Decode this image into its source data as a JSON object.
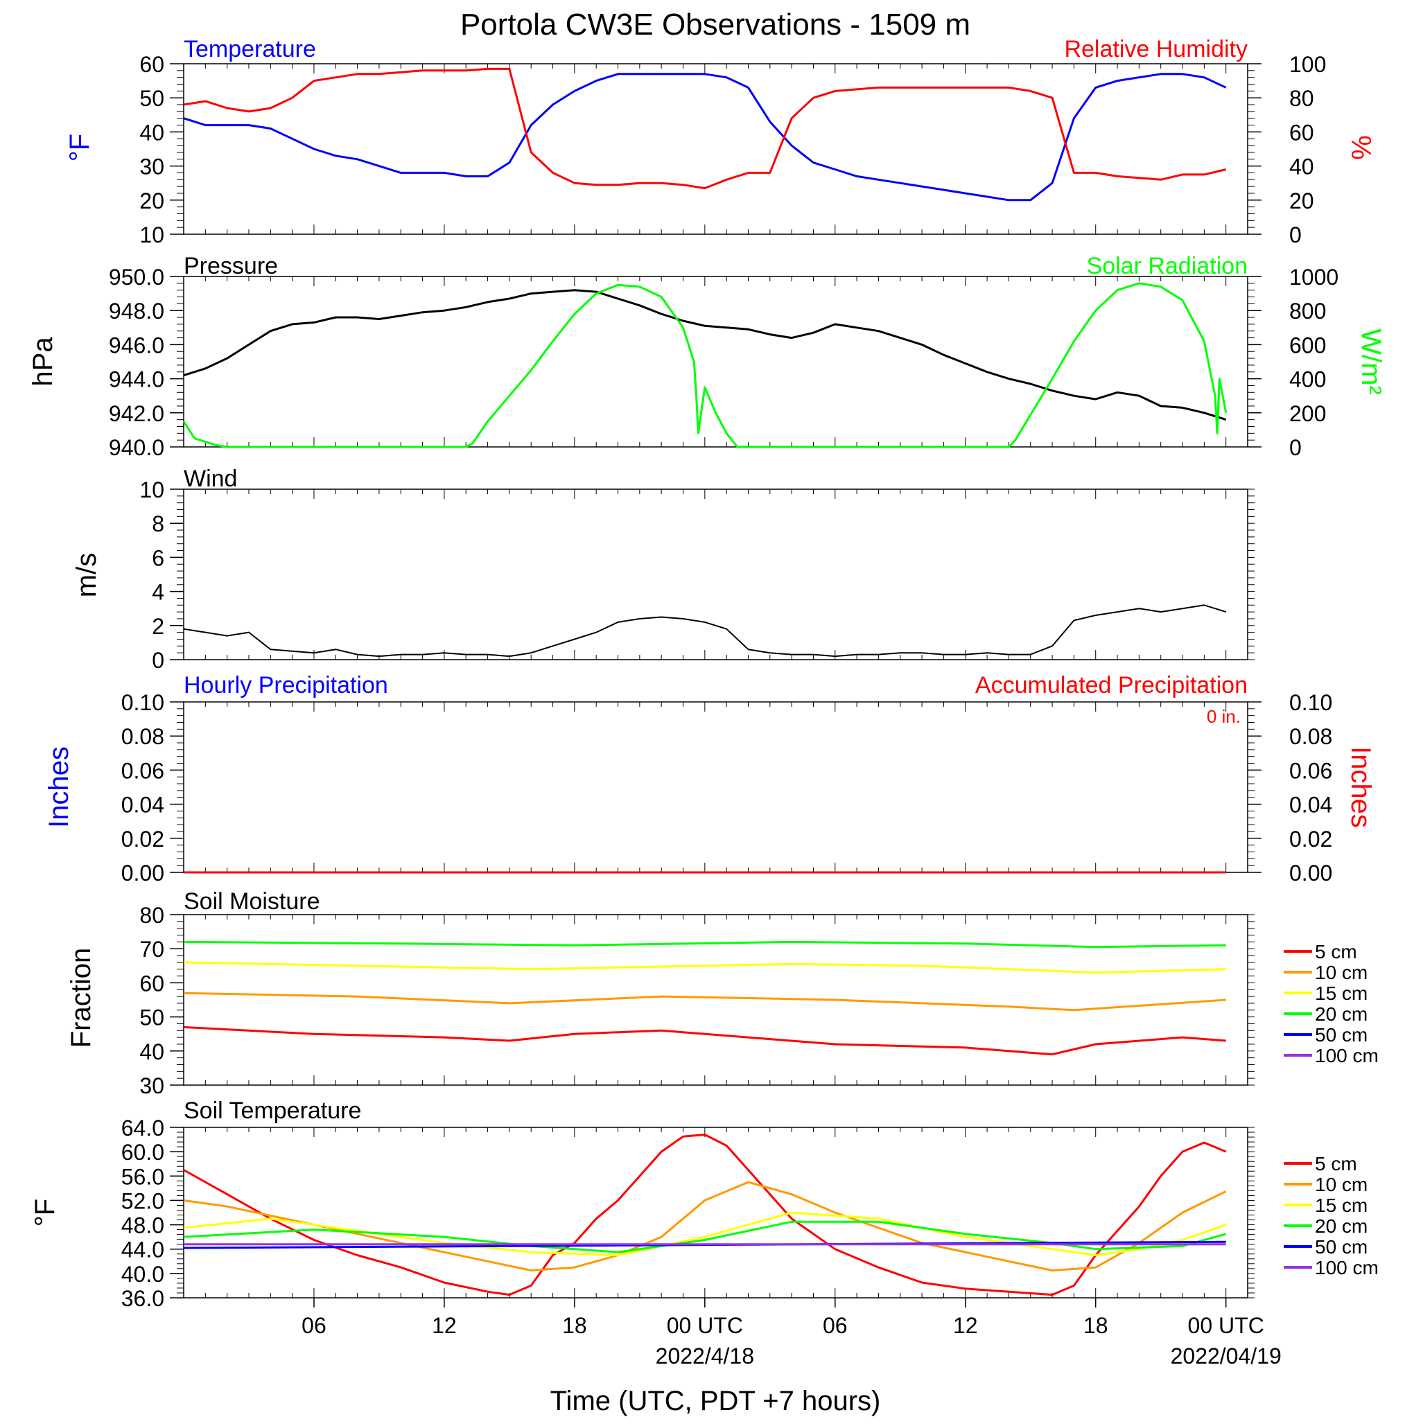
{
  "title": "Portola CW3E Observations - 1509 m",
  "xlabel": "Time (UTC, PDT +7 hours)",
  "x_ticks": [
    {
      "h": 6,
      "label": "06",
      "date": ""
    },
    {
      "h": 12,
      "label": "12",
      "date": ""
    },
    {
      "h": 18,
      "label": "18",
      "date": ""
    },
    {
      "h": 24,
      "label": "00 UTC",
      "date": "2022/4/18"
    },
    {
      "h": 30,
      "label": "06",
      "date": ""
    },
    {
      "h": 36,
      "label": "12",
      "date": ""
    },
    {
      "h": 42,
      "label": "18",
      "date": ""
    },
    {
      "h": 48,
      "label": "00 UTC",
      "date": "2022/04/19"
    }
  ],
  "legend_soil": [
    "5 cm",
    "10 cm",
    "15 cm",
    "20 cm",
    "50 cm",
    "100 cm"
  ],
  "colors": {
    "red": "#ff0000",
    "orange": "#ff9900",
    "yellow": "#ffff00",
    "green": "#00ff00",
    "blue": "#0000ff",
    "purple": "#9933dd",
    "black": "#000000"
  },
  "panels": {
    "temp": {
      "left_title": "Temperature",
      "right_title": "Relative Humidity",
      "left_unit": "°F",
      "right_unit": "%",
      "left_ticks": [
        "60",
        "50",
        "40",
        "30",
        "20",
        "10"
      ],
      "right_ticks": [
        "100",
        "80",
        "60",
        "40",
        "20",
        "0"
      ]
    },
    "press": {
      "left_title": "Pressure",
      "right_title": "Solar Radiation",
      "left_unit": "hPa",
      "right_unit": "W/m²",
      "left_ticks": [
        "950.0",
        "948.0",
        "946.0",
        "944.0",
        "942.0",
        "940.0"
      ],
      "right_ticks": [
        "1000",
        "800",
        "600",
        "400",
        "200",
        "0"
      ]
    },
    "wind": {
      "left_title": "Wind",
      "left_unit": "m/s",
      "left_ticks": [
        "10",
        "8",
        "6",
        "4",
        "2",
        "0"
      ]
    },
    "precip": {
      "left_title": "Hourly Precipitation",
      "right_title": "Accumulated Precipitation",
      "accum_value": "0 in.",
      "left_unit": "Inches",
      "right_unit": "Inches",
      "left_ticks": [
        "0.10",
        "0.08",
        "0.06",
        "0.04",
        "0.02",
        "0.00"
      ],
      "right_ticks": [
        "0.10",
        "0.08",
        "0.06",
        "0.04",
        "0.02",
        "0.00"
      ]
    },
    "smoist": {
      "left_title": "Soil Moisture",
      "left_unit": "Fraction",
      "left_ticks": [
        "80",
        "70",
        "60",
        "50",
        "40",
        "30"
      ]
    },
    "stemp": {
      "left_title": "Soil Temperature",
      "left_unit": "°F",
      "left_ticks": [
        "64.0",
        "60.0",
        "56.0",
        "52.0",
        "48.0",
        "44.0",
        "40.0",
        "36.0"
      ]
    }
  },
  "chart_data": [
    {
      "type": "line",
      "title": "Temperature / Relative Humidity",
      "x_units": "hours since 2022-04-17 00 UTC",
      "xlim": [
        0,
        49
      ],
      "ylabel": "°F",
      "ylim": [
        10,
        60
      ],
      "y2label": "%",
      "y2lim": [
        0,
        100
      ],
      "series": [
        {
          "name": "Temperature",
          "axis": "left",
          "color": "#0000ff",
          "x": [
            0,
            1,
            3,
            4,
            5,
            6,
            7,
            8,
            9,
            10,
            11,
            12,
            13,
            14,
            15,
            16,
            17,
            18,
            19,
            20,
            21,
            22,
            23,
            24,
            25,
            26,
            27,
            28,
            29,
            30,
            31,
            32,
            33,
            34,
            35,
            36,
            37,
            38,
            39,
            40,
            41,
            42,
            43,
            44,
            45,
            46,
            47,
            48
          ],
          "y": [
            44,
            42,
            42,
            41,
            38,
            35,
            33,
            32,
            30,
            28,
            28,
            28,
            27,
            27,
            31,
            42,
            48,
            52,
            55,
            57,
            57,
            57,
            57,
            57,
            56,
            53,
            43,
            36,
            31,
            29,
            27,
            26,
            25,
            24,
            23,
            22,
            21,
            20,
            20,
            25,
            44,
            53,
            55,
            56,
            57,
            57,
            56,
            53
          ]
        },
        {
          "name": "Relative Humidity",
          "axis": "right",
          "color": "#ff0000",
          "x": [
            0,
            1,
            2,
            3,
            4,
            5,
            6,
            7,
            8,
            9,
            10,
            11,
            12,
            13,
            14,
            15,
            16,
            17,
            18,
            19,
            20,
            21,
            22,
            23,
            24,
            25,
            26,
            27,
            28,
            29,
            30,
            31,
            32,
            33,
            34,
            35,
            36,
            37,
            38,
            39,
            40,
            41,
            42,
            43,
            44,
            45,
            46,
            47,
            48
          ],
          "y": [
            76,
            78,
            74,
            72,
            74,
            80,
            90,
            92,
            94,
            94,
            95,
            96,
            96,
            96,
            97,
            97,
            48,
            36,
            30,
            29,
            29,
            30,
            30,
            29,
            27,
            32,
            36,
            36,
            68,
            80,
            84,
            85,
            86,
            86,
            86,
            86,
            86,
            86,
            86,
            84,
            80,
            36,
            36,
            34,
            33,
            32,
            35,
            35,
            38
          ]
        }
      ]
    },
    {
      "type": "line",
      "title": "Pressure / Solar Radiation",
      "ylabel": "hPa",
      "ylim": [
        940,
        950
      ],
      "y2label": "W/m²",
      "y2lim": [
        0,
        1000
      ],
      "series": [
        {
          "name": "Pressure",
          "axis": "left",
          "color": "#000000",
          "x": [
            0,
            1,
            2,
            3,
            4,
            5,
            6,
            7,
            8,
            9,
            10,
            11,
            12,
            13,
            14,
            15,
            16,
            17,
            18,
            19,
            20,
            21,
            22,
            23,
            24,
            25,
            26,
            27,
            28,
            29,
            30,
            31,
            32,
            33,
            34,
            35,
            36,
            37,
            38,
            39,
            40,
            41,
            42,
            43,
            44,
            45,
            46,
            47,
            48
          ],
          "y": [
            944.2,
            944.6,
            945.2,
            946,
            946.8,
            947.2,
            947.3,
            947.6,
            947.6,
            947.5,
            947.7,
            947.9,
            948,
            948.2,
            948.5,
            948.7,
            949,
            949.1,
            949.2,
            949.1,
            948.7,
            948.3,
            947.8,
            947.4,
            947.1,
            947,
            946.9,
            946.6,
            946.4,
            946.7,
            947.2,
            947,
            946.8,
            946.4,
            946,
            945.4,
            944.9,
            944.4,
            944,
            943.7,
            943.3,
            943,
            942.8,
            943.2,
            943,
            942.4,
            942.3,
            942,
            941.6
          ]
        },
        {
          "name": "Solar Radiation",
          "axis": "right",
          "color": "#00ff00",
          "x": [
            0,
            0.5,
            1.5,
            2,
            13,
            13.3,
            14,
            15,
            16,
            17,
            18,
            19,
            20,
            21,
            22,
            23,
            23.5,
            23.6,
            23.7,
            24,
            24.5,
            25,
            25.5,
            26.5,
            27,
            38,
            38.3,
            40,
            41,
            42,
            43,
            44,
            45,
            46,
            47,
            47.5,
            47.6,
            47.7,
            48
          ],
          "y": [
            150,
            50,
            10,
            0,
            0,
            20,
            150,
            300,
            450,
            620,
            780,
            900,
            950,
            940,
            880,
            700,
            500,
            320,
            80,
            350,
            200,
            80,
            0,
            0,
            0,
            0,
            40,
            400,
            620,
            800,
            920,
            960,
            940,
            860,
            620,
            300,
            80,
            400,
            200
          ]
        }
      ]
    },
    {
      "type": "line",
      "title": "Wind",
      "ylabel": "m/s",
      "ylim": [
        0,
        10
      ],
      "series": [
        {
          "name": "Wind speed",
          "axis": "left",
          "color": "#000000",
          "x": [
            0,
            1,
            2,
            3,
            4,
            5,
            6,
            7,
            8,
            9,
            10,
            11,
            12,
            13,
            14,
            15,
            16,
            17,
            18,
            19,
            20,
            21,
            22,
            23,
            24,
            25,
            26,
            27,
            28,
            29,
            30,
            31,
            32,
            33,
            34,
            35,
            36,
            37,
            38,
            39,
            40,
            41,
            42,
            43,
            44,
            45,
            46,
            47,
            48
          ],
          "y": [
            1.8,
            1.6,
            1.4,
            1.6,
            0.6,
            0.5,
            0.4,
            0.6,
            0.3,
            0.2,
            0.3,
            0.3,
            0.4,
            0.3,
            0.3,
            0.2,
            0.4,
            0.8,
            1.2,
            1.6,
            2.2,
            2.4,
            2.5,
            2.4,
            2.2,
            1.8,
            0.6,
            0.4,
            0.3,
            0.3,
            0.2,
            0.3,
            0.3,
            0.4,
            0.4,
            0.3,
            0.3,
            0.4,
            0.3,
            0.3,
            0.8,
            2.3,
            2.6,
            2.8,
            3.0,
            2.8,
            3.0,
            3.2,
            2.8
          ]
        }
      ]
    },
    {
      "type": "line",
      "title": "Precipitation",
      "ylabel": "Inches",
      "ylim": [
        0,
        0.1
      ],
      "y2label": "Inches",
      "y2lim": [
        0,
        0.1
      ],
      "series": [
        {
          "name": "Hourly Precipitation",
          "axis": "left",
          "color": "#0000ff",
          "x": [
            0,
            48
          ],
          "y": [
            0,
            0
          ]
        },
        {
          "name": "Accumulated Precipitation",
          "axis": "right",
          "color": "#ff0000",
          "x": [
            0,
            48
          ],
          "y": [
            0,
            0
          ]
        }
      ]
    },
    {
      "type": "line",
      "title": "Soil Moisture",
      "ylabel": "Fraction",
      "ylim": [
        30,
        80
      ],
      "series": [
        {
          "name": "5 cm",
          "color": "#ff0000",
          "x": [
            0,
            6,
            12,
            15,
            18,
            22,
            30,
            36,
            40,
            42,
            46,
            48
          ],
          "y": [
            47,
            45,
            44,
            43,
            45,
            46,
            42,
            41,
            39,
            42,
            44,
            43
          ]
        },
        {
          "name": "10 cm",
          "color": "#ff9900",
          "x": [
            0,
            8,
            15,
            22,
            30,
            38,
            41,
            48
          ],
          "y": [
            57,
            56,
            54,
            56,
            55,
            53,
            52,
            55
          ]
        },
        {
          "name": "15 cm",
          "color": "#ffff00",
          "x": [
            0,
            8,
            16,
            28,
            34,
            42,
            48
          ],
          "y": [
            66,
            65,
            64,
            65.5,
            65,
            63,
            64
          ]
        },
        {
          "name": "20 cm",
          "color": "#00ff00",
          "x": [
            0,
            10,
            18,
            28,
            36,
            42,
            48
          ],
          "y": [
            72,
            71.5,
            71,
            72,
            71.5,
            70.5,
            71
          ]
        }
      ]
    },
    {
      "type": "line",
      "title": "Soil Temperature",
      "ylabel": "°F",
      "ylim": [
        36,
        64
      ],
      "series": [
        {
          "name": "5 cm",
          "color": "#ff0000",
          "x": [
            0,
            2,
            4,
            6,
            8,
            10,
            12,
            14,
            15,
            16,
            17,
            18,
            19,
            20,
            21,
            22,
            23,
            24,
            25,
            26,
            27,
            28,
            30,
            32,
            34,
            36,
            38,
            40,
            41,
            42,
            43,
            44,
            45,
            46,
            47,
            48
          ],
          "y": [
            57,
            53,
            49,
            45.5,
            43,
            41,
            38.5,
            37,
            36.5,
            38,
            43,
            45,
            49,
            52,
            56,
            60,
            62.5,
            62.8,
            61,
            57,
            53,
            49,
            44,
            41,
            38.5,
            37.5,
            37,
            36.5,
            38,
            43,
            47,
            51,
            56,
            60,
            61.5,
            60
          ]
        },
        {
          "name": "10 cm",
          "color": "#ff9900",
          "x": [
            0,
            2,
            6,
            10,
            14,
            16,
            18,
            20,
            22,
            24,
            26,
            28,
            30,
            34,
            38,
            40,
            42,
            44,
            46,
            48
          ],
          "y": [
            52,
            51,
            48,
            45,
            42,
            40.5,
            41,
            43,
            46,
            52,
            55,
            53,
            50,
            45,
            42,
            40.5,
            41,
            45,
            50,
            53.5
          ]
        },
        {
          "name": "15 cm",
          "color": "#ffff00",
          "x": [
            0,
            4,
            8,
            12,
            16,
            20,
            24,
            28,
            32,
            36,
            40,
            42,
            44,
            46,
            48
          ],
          "y": [
            47.5,
            49,
            47,
            45,
            43.5,
            43,
            46,
            50,
            49,
            46,
            44,
            43,
            44,
            45.5,
            48
          ]
        },
        {
          "name": "20 cm",
          "color": "#00ff00",
          "x": [
            0,
            6,
            12,
            16,
            20,
            24,
            28,
            32,
            36,
            40,
            42,
            46,
            48
          ],
          "y": [
            46,
            47.2,
            46,
            44.5,
            43.5,
            45.5,
            48.5,
            48.5,
            46.5,
            45,
            44,
            44.5,
            46.5
          ]
        },
        {
          "name": "50 cm",
          "color": "#0000ff",
          "x": [
            0,
            48
          ],
          "y": [
            44.2,
            45.2
          ]
        },
        {
          "name": "100 cm",
          "color": "#9933dd",
          "x": [
            0,
            48
          ],
          "y": [
            44.8,
            44.8
          ]
        }
      ]
    }
  ]
}
